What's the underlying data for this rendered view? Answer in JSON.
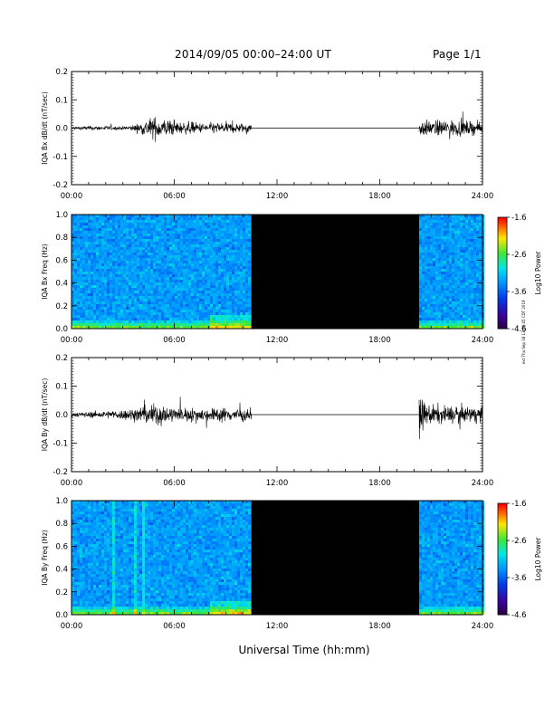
{
  "header": {
    "title": "2014/09/05  00:00–24:00 UT",
    "page": "Page 1/1"
  },
  "x_axis_label": "Universal Time (hh:mm)",
  "side_note": "ext Thu Sep 18 13:09:45 CDT 2019",
  "chart_data": [
    {
      "type": "line",
      "ylabel": "IQA Bx dB/dt (nT/sec)",
      "xlim": [
        0,
        24
      ],
      "ylim": [
        -0.2,
        0.2
      ],
      "yticks": [
        "0.2",
        "0.1",
        "0.0",
        "-0.1",
        "-0.2"
      ],
      "xticks": [
        "00:00",
        "06:00",
        "12:00",
        "18:00",
        "24:00"
      ],
      "data_gap_hours": [
        10.5,
        20.3
      ],
      "series": [
        {
          "segments": [
            {
              "x": [
                0,
                1,
                2,
                3,
                3.5,
                4,
                4.5,
                5,
                5.5,
                6,
                6.5,
                7,
                7.5,
                8,
                8.5,
                9,
                9.5,
                10,
                10.5
              ],
              "amp": [
                0.01,
                0.015,
                0.015,
                0.012,
                0.02,
                0.035,
                0.07,
                0.08,
                0.065,
                0.05,
                0.04,
                0.045,
                0.035,
                0.035,
                0.04,
                0.04,
                0.035,
                0.035,
                0.035
              ]
            },
            {
              "x": [
                20.3,
                21,
                22,
                23,
                24
              ],
              "amp": [
                0.06,
                0.05,
                0.06,
                0.05,
                0.04
              ]
            }
          ]
        }
      ]
    },
    {
      "type": "heatmap",
      "ylabel": "IQA Bx Freq (Hz)",
      "colorbar_label": "Log10 Power",
      "zlim": [
        -4.6,
        -1.6
      ],
      "colorbar_ticks": [
        "-1.6",
        "-2.6",
        "-3.6",
        "-4.6"
      ],
      "yticks": [
        "1.0",
        "0.8",
        "0.6",
        "0.4",
        "0.2",
        "0.0"
      ],
      "xticks": [
        "00:00",
        "06:00",
        "12:00",
        "18:00",
        "24:00"
      ],
      "ylim": [
        0,
        1.0
      ],
      "xlim": [
        0,
        24
      ],
      "data_gap_hours": [
        10.5,
        20.3
      ]
    },
    {
      "type": "line",
      "ylabel": "IQA By dB/dt (nT/sec)",
      "xlim": [
        0,
        24
      ],
      "ylim": [
        -0.2,
        0.2
      ],
      "yticks": [
        "0.2",
        "0.1",
        "0.0",
        "-0.1",
        "-0.2"
      ],
      "xticks": [
        "00:00",
        "06:00",
        "12:00",
        "18:00",
        "24:00"
      ],
      "data_gap_hours": [
        10.5,
        20.3
      ],
      "series": [
        {
          "segments": [
            {
              "x": [
                0,
                1,
                2,
                3,
                3.5,
                4,
                4.5,
                5,
                5.5,
                6,
                6.5,
                7,
                7.5,
                8,
                8.5,
                9,
                9.5,
                10,
                10.5
              ],
              "amp": [
                0.015,
                0.02,
                0.025,
                0.035,
                0.045,
                0.05,
                0.07,
                0.08,
                0.065,
                0.05,
                0.045,
                0.05,
                0.045,
                0.045,
                0.05,
                0.05,
                0.045,
                0.045,
                0.045
              ]
            },
            {
              "x": [
                20.3,
                20.6,
                21,
                22,
                23,
                24
              ],
              "amp": [
                0.12,
                0.09,
                0.07,
                0.06,
                0.06,
                0.05
              ]
            }
          ]
        }
      ]
    },
    {
      "type": "heatmap",
      "ylabel": "IQA By Freq (Hz)",
      "colorbar_label": "Log10 Power",
      "zlim": [
        -4.6,
        -1.6
      ],
      "colorbar_ticks": [
        "-1.6",
        "-2.6",
        "-3.6",
        "-4.6"
      ],
      "yticks": [
        "1.0",
        "0.8",
        "0.6",
        "0.4",
        "0.2",
        "0.0"
      ],
      "xticks": [
        "00:00",
        "06:00",
        "12:00",
        "18:00",
        "24:00"
      ],
      "ylim": [
        0,
        1.0
      ],
      "xlim": [
        0,
        24
      ],
      "data_gap_hours": [
        10.5,
        20.3
      ]
    }
  ]
}
